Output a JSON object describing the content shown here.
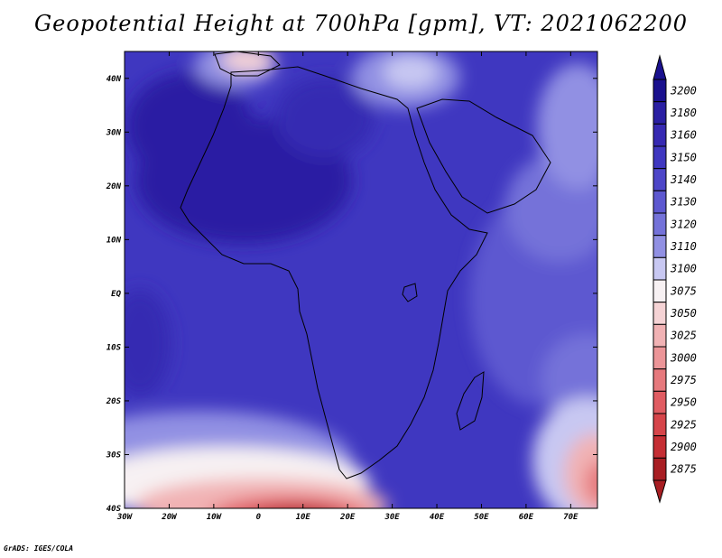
{
  "title": "Geopotential Height at 700hPa [gpm], VT: 2021062200",
  "credit": "GrADS: IGES/COLA",
  "map": {
    "lon_range": [
      -30,
      76
    ],
    "lat_range": [
      -40,
      45
    ],
    "lon_ticks": [
      {
        "value": -30,
        "label": "30W"
      },
      {
        "value": -20,
        "label": "20W"
      },
      {
        "value": -10,
        "label": "10W"
      },
      {
        "value": 0,
        "label": "0"
      },
      {
        "value": 10,
        "label": "10E"
      },
      {
        "value": 20,
        "label": "20E"
      },
      {
        "value": 30,
        "label": "30E"
      },
      {
        "value": 40,
        "label": "40E"
      },
      {
        "value": 50,
        "label": "50E"
      },
      {
        "value": 60,
        "label": "60E"
      },
      {
        "value": 70,
        "label": "70E"
      }
    ],
    "lat_ticks": [
      {
        "value": 40,
        "label": "40N"
      },
      {
        "value": 30,
        "label": "30N"
      },
      {
        "value": 20,
        "label": "20N"
      },
      {
        "value": 10,
        "label": "10N"
      },
      {
        "value": 0,
        "label": "EQ"
      },
      {
        "value": -10,
        "label": "10S"
      },
      {
        "value": -20,
        "label": "20S"
      },
      {
        "value": -30,
        "label": "30S"
      },
      {
        "value": -40,
        "label": "40S"
      }
    ],
    "background_color": "#3f37c0"
  },
  "colorbar": {
    "levels": [
      {
        "label": "3200",
        "color": "#1a118e"
      },
      {
        "label": "3180",
        "color": "#2a1fa3"
      },
      {
        "label": "3160",
        "color": "#3629b2"
      },
      {
        "label": "3150",
        "color": "#3f37c0"
      },
      {
        "label": "3140",
        "color": "#4d46c8"
      },
      {
        "label": "3130",
        "color": "#5d58d0"
      },
      {
        "label": "3120",
        "color": "#7472d9"
      },
      {
        "label": "3110",
        "color": "#9190e3"
      },
      {
        "label": "3100",
        "color": "#c8c8f2"
      },
      {
        "label": "3075",
        "color": "#f7f1f3"
      },
      {
        "label": "3050",
        "color": "#f5d3d5"
      },
      {
        "label": "3025",
        "color": "#f1b2b4"
      },
      {
        "label": "3000",
        "color": "#ec9598"
      },
      {
        "label": "2975",
        "color": "#e6797d"
      },
      {
        "label": "2950",
        "color": "#e05c62"
      },
      {
        "label": "2925",
        "color": "#d6454a"
      },
      {
        "label": "2900",
        "color": "#c52e34"
      },
      {
        "label": "2875",
        "color": "#a81e23"
      }
    ],
    "max_arrow_color": "#1a118e",
    "min_arrow_color": "#a81e23"
  }
}
